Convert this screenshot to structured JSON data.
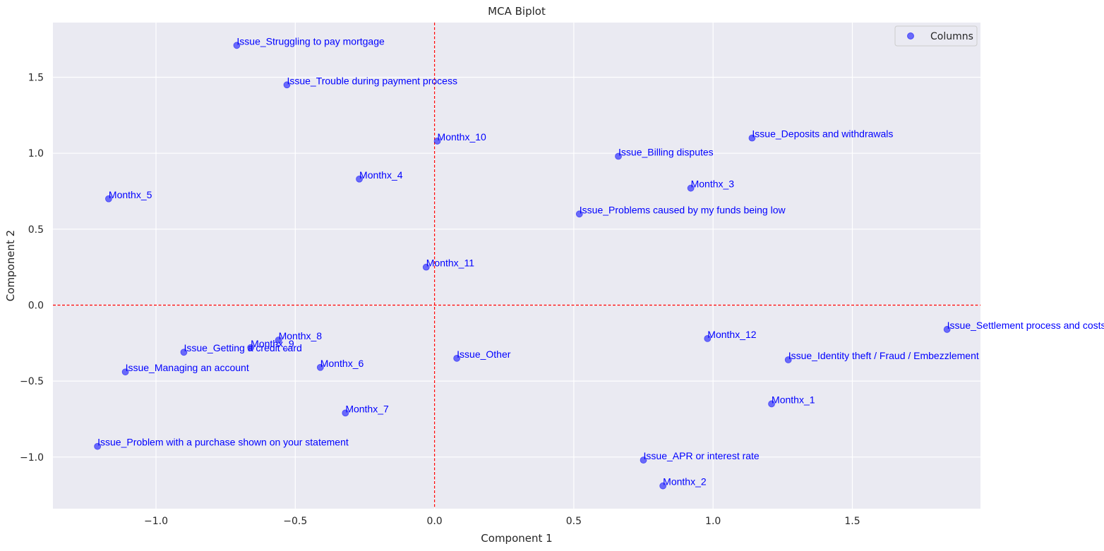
{
  "chart_data": {
    "type": "scatter",
    "title": "MCA Biplot",
    "xlabel": "Component 1",
    "ylabel": "Component 2",
    "xlim": [
      -1.37,
      1.96
    ],
    "ylim": [
      -1.34,
      1.86
    ],
    "x_ticks": [
      -1.0,
      -0.5,
      0.0,
      0.5,
      1.0,
      1.5
    ],
    "x_tick_labels": [
      "−1.0",
      "−0.5",
      "0.0",
      "0.5",
      "1.0",
      "1.5"
    ],
    "y_ticks": [
      -1.0,
      -0.5,
      0.0,
      0.5,
      1.0,
      1.5
    ],
    "y_tick_labels": [
      "−1.0",
      "−0.5",
      "0.0",
      "0.5",
      "1.0",
      "1.5"
    ],
    "grid": true,
    "reference_lines": {
      "x": 0,
      "y": 0,
      "color": "#ff0000",
      "style": "dashed"
    },
    "legend": {
      "placement": "top-right",
      "entries": [
        "Columns"
      ]
    },
    "colors": {
      "background": "#eaeaf2",
      "grid": "#ffffff",
      "point": "#0000ff",
      "label": "#0000ff",
      "reference_line": "#ff0000"
    },
    "series": [
      {
        "name": "Columns",
        "points": [
          {
            "label": "Issue_Struggling to pay mortgage",
            "x": -0.71,
            "y": 1.71
          },
          {
            "label": "Issue_Trouble during payment process",
            "x": -0.53,
            "y": 1.45
          },
          {
            "label": "Monthx_10",
            "x": 0.01,
            "y": 1.08
          },
          {
            "label": "Issue_Deposits and withdrawals",
            "x": 1.14,
            "y": 1.1
          },
          {
            "label": "Issue_Billing disputes",
            "x": 0.66,
            "y": 0.98
          },
          {
            "label": "Monthx_4",
            "x": -0.27,
            "y": 0.83
          },
          {
            "label": "Monthx_3",
            "x": 0.92,
            "y": 0.77
          },
          {
            "label": "Monthx_5",
            "x": -1.17,
            "y": 0.7
          },
          {
            "label": "Issue_Problems caused by my funds being low",
            "x": 0.52,
            "y": 0.6
          },
          {
            "label": "Monthx_11",
            "x": -0.03,
            "y": 0.25
          },
          {
            "label": "Issue_Settlement process and costs",
            "x": 1.84,
            "y": -0.16
          },
          {
            "label": "Monthx_8",
            "x": -0.56,
            "y": -0.23
          },
          {
            "label": "Monthx_12",
            "x": 0.98,
            "y": -0.22
          },
          {
            "label": "Monthx_9",
            "x": -0.66,
            "y": -0.28
          },
          {
            "label": "Issue_Getting a credit card",
            "x": -0.9,
            "y": -0.31
          },
          {
            "label": "Issue_Other",
            "x": 0.08,
            "y": -0.35
          },
          {
            "label": "Issue_Identity theft / Fraud / Embezzlement",
            "x": 1.27,
            "y": -0.36
          },
          {
            "label": "Monthx_6",
            "x": -0.41,
            "y": -0.41
          },
          {
            "label": "Issue_Managing an account",
            "x": -1.11,
            "y": -0.44
          },
          {
            "label": "Monthx_1",
            "x": 1.21,
            "y": -0.65
          },
          {
            "label": "Monthx_7",
            "x": -0.32,
            "y": -0.71
          },
          {
            "label": "Issue_Problem with a purchase shown on your statement",
            "x": -1.21,
            "y": -0.93
          },
          {
            "label": "Issue_APR or interest rate",
            "x": 0.75,
            "y": -1.02
          },
          {
            "label": "Monthx_2",
            "x": 0.82,
            "y": -1.19
          }
        ]
      }
    ]
  }
}
